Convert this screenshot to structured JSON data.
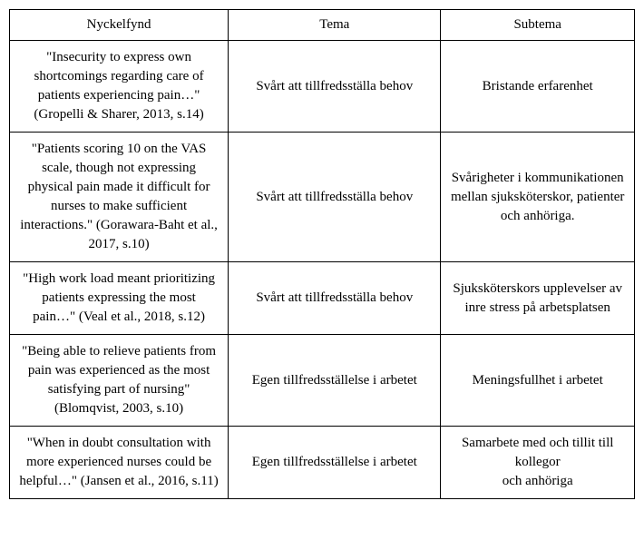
{
  "table": {
    "headers": [
      "Nyckelfynd",
      "Tema",
      "Subtema"
    ],
    "rows": [
      {
        "nyckelfynd": "\"Insecurity to express own shortcomings regarding care of patients experiencing pain…\" (Gropelli & Sharer, 2013, s.14)",
        "tema": "Svårt att tillfredsställa behov",
        "subtema": "Bristande erfarenhet"
      },
      {
        "nyckelfynd": "\"Patients scoring 10 on the VAS scale, though not expressing physical pain made it difficult for nurses to make sufficient interactions.\" (Gorawara-Baht et al., 2017, s.10)",
        "tema": "Svårt att tillfredsställa behov",
        "subtema": "Svårigheter i kommunikationen mellan sjuksköterskor, patienter och anhöriga."
      },
      {
        "nyckelfynd": "\"High work load meant prioritizing patients expressing the most pain…\" (Veal et al., 2018, s.12)",
        "tema": "Svårt att tillfredsställa behov",
        "subtema": "Sjuksköterskors upplevelser av inre stress på arbetsplatsen"
      },
      {
        "nyckelfynd": "\"Being able to relieve patients from pain was experienced as the most satisfying part of nursing\" (Blomqvist, 2003, s.10)",
        "tema": "Egen tillfredsställelse i arbetet",
        "subtema": "Meningsfullhet i arbetet"
      },
      {
        "nyckelfynd": "\"When in doubt consultation with more experienced nurses could be helpful…\" (Jansen et al., 2016, s.11)",
        "tema": "Egen tillfredsställelse i arbetet",
        "subtema": "Samarbete med och tillit till kollegor\noch anhöriga"
      }
    ]
  },
  "styles": {
    "font_family": "Georgia, Times New Roman, serif",
    "font_size_pt": 11,
    "border_color": "#000000",
    "background_color": "#ffffff",
    "text_align": "center",
    "col_widths_percent": [
      35,
      34,
      31
    ]
  }
}
